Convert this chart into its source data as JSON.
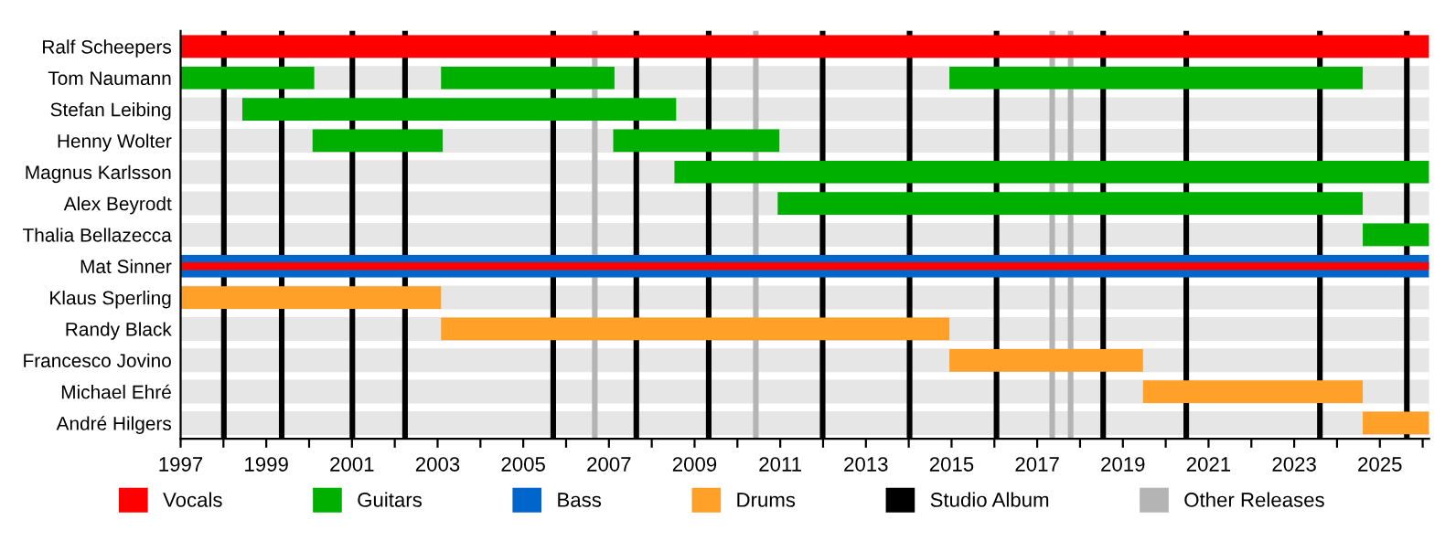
{
  "chart_data": {
    "type": "bar",
    "orientation": "horizontal",
    "categories": [
      "Ralf Scheepers",
      "Tom Naumann",
      "Stefan Leibing",
      "Henny Wolter",
      "Magnus Karlsson",
      "Alex Beyrodt",
      "Thalia Bellazecca",
      "Mat Sinner",
      "Klaus Sperling",
      "Randy Black",
      "Francesco Jovino",
      "Michael Ehré",
      "André Hilgers"
    ],
    "series": [
      {
        "name": "Vocals",
        "color": "#ff0000",
        "values": [
          29.15,
          null,
          null,
          null,
          null,
          null,
          null,
          null,
          null,
          null,
          null,
          null,
          null
        ],
        "base": [
          1997,
          null,
          null,
          null,
          null,
          null,
          null,
          null,
          null,
          null,
          null,
          null,
          null
        ]
      },
      {
        "name": "Guitars",
        "color": "#00b000",
        "values": [
          null,
          3.12,
          10.13,
          3.04,
          17.62,
          13.66,
          1.55,
          null,
          null,
          null,
          null,
          null,
          null
        ],
        "base": [
          null,
          1997,
          1998.44,
          2000.08,
          2008.53,
          2010.94,
          2024.6,
          null,
          null,
          null,
          null,
          null,
          null
        ]
      },
      {
        "color": "#00b000",
        "values": [
          null,
          4.05,
          null,
          3.88,
          null,
          null,
          null,
          null,
          null,
          null,
          null,
          null,
          null
        ],
        "base": [
          null,
          2003.08,
          null,
          2007.1,
          null,
          null,
          null,
          null,
          null,
          null,
          null,
          null,
          null
        ]
      },
      {
        "color": "#00b000",
        "values": [
          null,
          9.65,
          null,
          null,
          null,
          null,
          null,
          null,
          null,
          null,
          null,
          null,
          null
        ],
        "base": [
          null,
          2014.95,
          null,
          null,
          null,
          null,
          null,
          null,
          null,
          null,
          null,
          null,
          null
        ]
      },
      {
        "name": "Bass",
        "color": "#0066cc",
        "values": [
          null,
          null,
          null,
          null,
          null,
          null,
          null,
          29.15,
          null,
          null,
          null,
          null,
          null
        ],
        "base": [
          null,
          null,
          null,
          null,
          null,
          null,
          null,
          1997,
          null,
          null,
          null,
          null,
          null
        ]
      },
      {
        "name": "Drums",
        "color": "#ffa028",
        "values": [
          null,
          null,
          null,
          null,
          null,
          null,
          null,
          null,
          6.08,
          11.87,
          4.52,
          5.13,
          1.55
        ],
        "base": [
          null,
          null,
          null,
          null,
          null,
          null,
          null,
          null,
          1997,
          2003.08,
          2014.95,
          2019.47,
          2024.6
        ]
      },
      {
        "color": "#ff0000",
        "values": [
          null,
          null,
          null,
          null,
          null,
          null,
          null,
          29.15,
          null,
          null,
          null,
          null,
          null
        ],
        "base": [
          null,
          null,
          null,
          null,
          null,
          null,
          null,
          1997,
          null,
          null,
          null,
          null,
          null
        ]
      }
    ],
    "xlim": [
      1997,
      2026.15
    ],
    "xticks": [
      1997,
      {
        "value": 1998,
        "label": null
      },
      1999,
      {
        "value": 2000,
        "label": null
      },
      2001,
      {
        "value": 2002,
        "label": null
      },
      2003,
      {
        "value": 2004,
        "label": null
      },
      2005,
      {
        "value": 2006,
        "label": null
      },
      2007,
      {
        "value": 2008,
        "label": null
      },
      2009,
      {
        "value": 2010,
        "label": null
      },
      2011,
      {
        "value": 2012,
        "label": null
      },
      2013,
      {
        "value": 2014,
        "label": null
      },
      2015,
      {
        "value": 2016,
        "label": null
      },
      2017,
      {
        "value": 2018,
        "label": null
      },
      2019,
      {
        "value": 2020,
        "label": null
      },
      2021,
      {
        "value": 2022,
        "label": null
      },
      2023,
      {
        "value": 2024,
        "label": null
      },
      2025,
      {
        "value": 2026,
        "label": null
      }
    ],
    "ref_lines": [
      {
        "axis": "x",
        "value": 1998.01,
        "label": "Studio Album",
        "color": "#000000"
      },
      {
        "axis": "x",
        "value": 1999.36,
        "color": "#000000"
      },
      {
        "axis": "x",
        "value": 2001.01,
        "color": "#000000"
      },
      {
        "axis": "x",
        "value": 2002.24,
        "color": "#000000"
      },
      {
        "axis": "x",
        "value": 2005.7,
        "color": "#000000"
      },
      {
        "axis": "x",
        "value": 2007.64,
        "color": "#000000"
      },
      {
        "axis": "x",
        "value": 2009.33,
        "color": "#000000"
      },
      {
        "axis": "x",
        "value": 2011.99,
        "color": "#000000"
      },
      {
        "axis": "x",
        "value": 2014.02,
        "color": "#000000"
      },
      {
        "axis": "x",
        "value": 2016.05,
        "color": "#000000"
      },
      {
        "axis": "x",
        "value": 2018.54,
        "color": "#000000"
      },
      {
        "axis": "x",
        "value": 2020.48,
        "color": "#000000"
      },
      {
        "axis": "x",
        "value": 2023.6,
        "color": "#000000"
      },
      {
        "axis": "x",
        "value": 2025.63,
        "color": "#000000"
      },
      {
        "axis": "x",
        "value": 2006.67,
        "label": "Other Releases",
        "color": "#b4b4b4"
      },
      {
        "axis": "x",
        "value": 2010.43,
        "color": "#b4b4b4"
      },
      {
        "axis": "x",
        "value": 2017.35,
        "color": "#b4b4b4"
      },
      {
        "axis": "x",
        "value": 2017.78,
        "color": "#b4b4b4"
      }
    ],
    "legend": "bottom",
    "grid": false
  }
}
